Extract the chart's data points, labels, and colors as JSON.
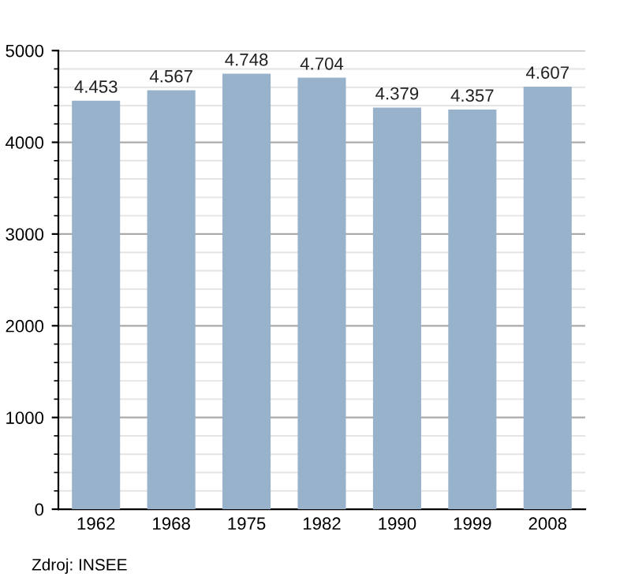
{
  "chart_data": {
    "type": "bar",
    "categories": [
      "1962",
      "1968",
      "1975",
      "1982",
      "1990",
      "1999",
      "2008"
    ],
    "values": [
      4453,
      4567,
      4748,
      4704,
      4379,
      4357,
      4607
    ],
    "value_labels": [
      "4.453",
      "4.567",
      "4.748",
      "4.704",
      "4.379",
      "4.357",
      "4.607"
    ],
    "color": "#98b2cb",
    "ylim": [
      0,
      5000
    ],
    "yticks": [
      0,
      1000,
      2000,
      3000,
      4000,
      5000
    ],
    "grid": "y",
    "annotations": [
      "Zdroj: INSEE"
    ]
  }
}
